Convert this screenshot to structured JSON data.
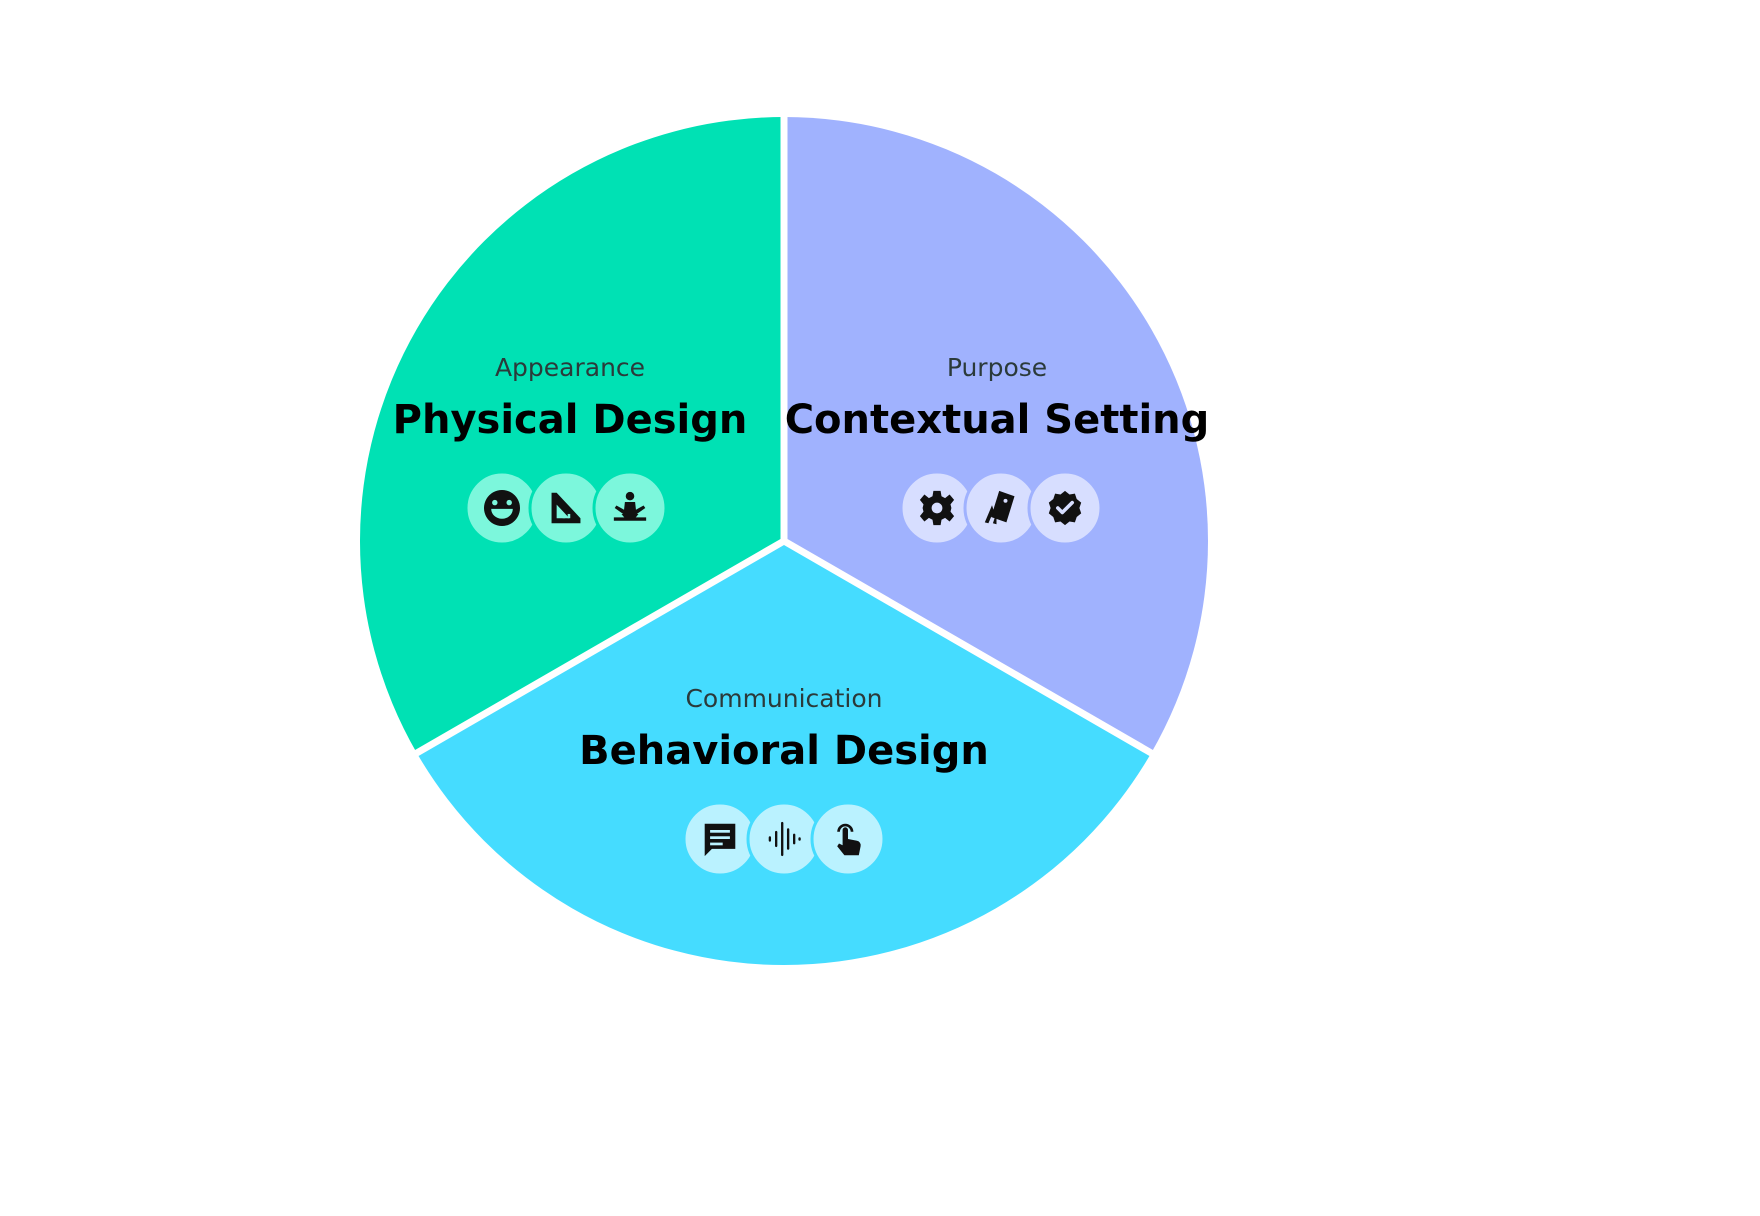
{
  "colors": {
    "background": "#ffffff",
    "divider": "#ffffff",
    "icon_fill": "#111111"
  },
  "segments": [
    {
      "id": "physical",
      "subtitle": "Appearance",
      "title": "Physical Design",
      "color": "#00e1b4",
      "icon_bg": "#7cf7dc",
      "icons": [
        "smiley-face-icon",
        "set-square-ruler-icon",
        "meditation-pose-icon"
      ]
    },
    {
      "id": "contextual",
      "subtitle": "Purpose",
      "title": "Contextual Setting",
      "color": "#a0b2fe",
      "icon_bg": "#d7deff",
      "icons": [
        "gear-icon",
        "swatch-cards-icon",
        "verified-badge-icon"
      ]
    },
    {
      "id": "behavioral",
      "subtitle": "Communication",
      "title": "Behavioral Design",
      "color": "#45dcff",
      "icon_bg": "#baf2ff",
      "icons": [
        "chat-bubble-icon",
        "audio-waveform-icon",
        "tap-gesture-icon"
      ]
    }
  ]
}
